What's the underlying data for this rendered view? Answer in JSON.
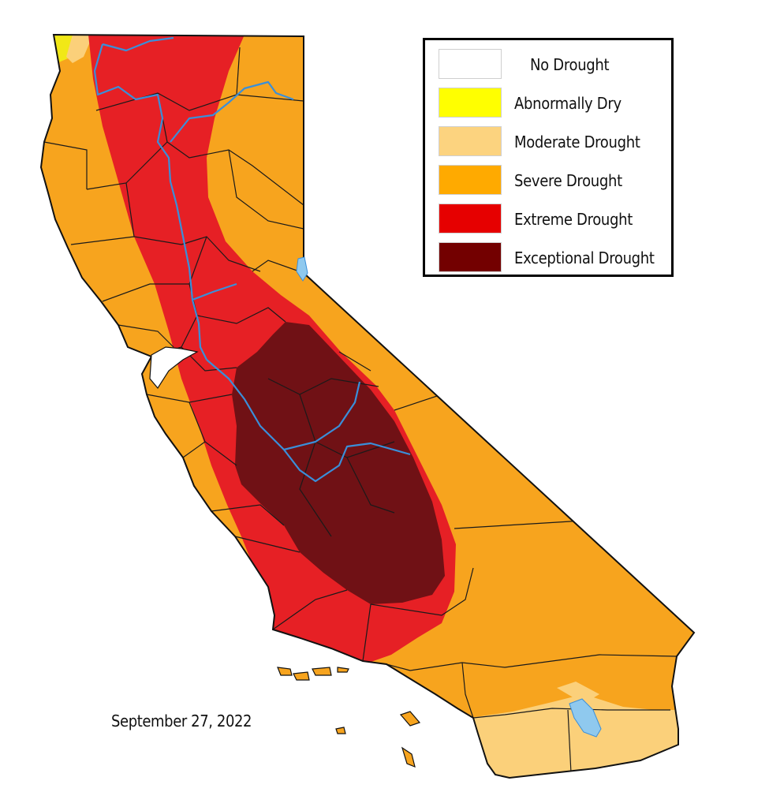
{
  "legend": {
    "items": [
      {
        "label": "No Drought",
        "color": "#ffffff"
      },
      {
        "label": "Abnormally Dry",
        "color": "#ffff00"
      },
      {
        "label": "Moderate Drought",
        "color": "#fcd37f"
      },
      {
        "label": "Severe Drought",
        "color": "#ffaa00"
      },
      {
        "label": "Extreme Drought",
        "color": "#e60000"
      },
      {
        "label": "Exceptional Drought",
        "color": "#730000"
      }
    ]
  },
  "date": "September 27, 2022",
  "colors": {
    "river": "#3a8fd9",
    "lake": "#8fc9ee",
    "county_border": "#1a1a1a"
  }
}
